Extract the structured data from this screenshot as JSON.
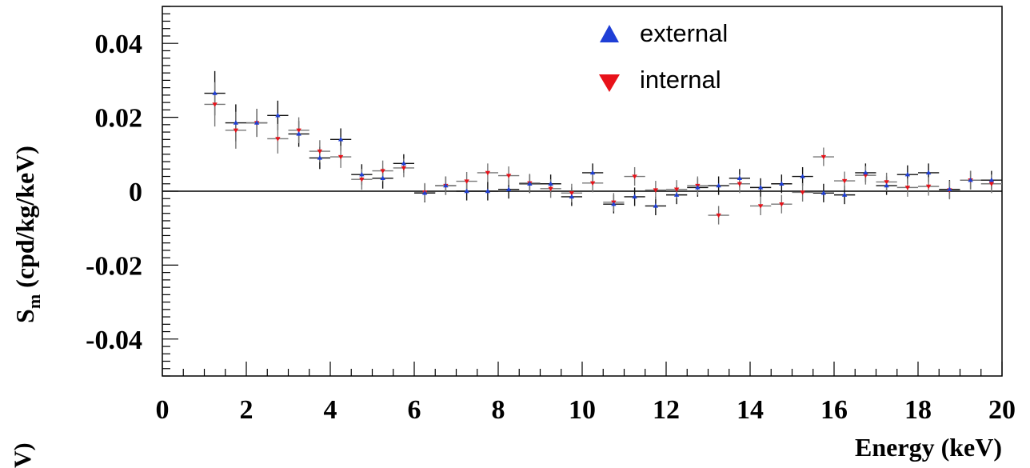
{
  "chart_data": {
    "type": "scatter",
    "title": "",
    "xlabel": "Energy (keV)",
    "ylabel_main": "S",
    "ylabel_sub": "m",
    "ylabel_units": "(cpd/kg/keV)",
    "clipped_label": "V)",
    "xlim": [
      0,
      20
    ],
    "ylim": [
      -0.05,
      0.05
    ],
    "xticks": [
      0,
      2,
      4,
      6,
      8,
      10,
      12,
      14,
      16,
      18,
      20
    ],
    "xtick_labels": [
      "0",
      "2",
      "4",
      "6",
      "8",
      "10",
      "12",
      "14",
      "16",
      "18",
      "20"
    ],
    "yticks": [
      -0.04,
      -0.02,
      0,
      0.02,
      0.04
    ],
    "ytick_labels": [
      "-0.04",
      "-0.02",
      "0",
      "0.02",
      "0.04"
    ],
    "zero_line": true,
    "x_bin_half_width": 0.25,
    "x": [
      1.25,
      1.75,
      2.25,
      2.75,
      3.25,
      3.75,
      4.25,
      4.75,
      5.25,
      5.75,
      6.25,
      6.75,
      7.25,
      7.75,
      8.25,
      8.75,
      9.25,
      9.75,
      10.25,
      10.75,
      11.25,
      11.75,
      12.25,
      12.75,
      13.25,
      13.75,
      14.25,
      14.75,
      15.25,
      15.75,
      16.25,
      16.75,
      17.25,
      17.75,
      18.25,
      18.75,
      19.25,
      19.75
    ],
    "series": [
      {
        "name": "external",
        "color": "#1f3fd6",
        "marker": "triangle-up",
        "values": [
          0.0265,
          0.0185,
          0.0185,
          0.0205,
          0.0155,
          0.009,
          0.014,
          0.0045,
          0.0035,
          0.0075,
          -0.0005,
          0.0015,
          0.0,
          0.0,
          0.0005,
          0.002,
          0.002,
          -0.0015,
          0.005,
          -0.0035,
          -0.0015,
          -0.004,
          -0.001,
          0.001,
          0.0015,
          0.0035,
          0.001,
          0.002,
          0.004,
          -0.0005,
          -0.001,
          0.005,
          0.0015,
          0.0045,
          0.005,
          0.0005,
          0.003,
          0.003
        ],
        "errors": [
          0.006,
          0.005,
          0.0038,
          0.004,
          0.0035,
          0.003,
          0.003,
          0.0028,
          0.0028,
          0.0025,
          0.0025,
          0.0025,
          0.0025,
          0.0025,
          0.0025,
          0.0025,
          0.0025,
          0.0025,
          0.0025,
          0.0025,
          0.0025,
          0.0025,
          0.0025,
          0.0025,
          0.0025,
          0.0025,
          0.0025,
          0.0025,
          0.0025,
          0.0025,
          0.0025,
          0.0025,
          0.0025,
          0.0025,
          0.0025,
          0.0025,
          0.0025,
          0.0025
        ]
      },
      {
        "name": "internal",
        "color": "#e8121a",
        "marker": "triangle-down",
        "values": [
          0.0235,
          0.0165,
          0.0185,
          0.0142,
          0.0165,
          0.0108,
          0.0093,
          0.0032,
          0.0055,
          0.0063,
          -0.0003,
          0.0015,
          0.0027,
          0.005,
          0.0042,
          0.0022,
          0.0007,
          -0.0005,
          0.0022,
          -0.003,
          0.004,
          0.0003,
          0.0005,
          0.0015,
          -0.0065,
          0.002,
          -0.004,
          -0.0035,
          -0.0003,
          0.0093,
          0.0028,
          0.0043,
          0.0025,
          0.001,
          0.0013,
          0.0003,
          0.003,
          0.002
        ]
      }
    ],
    "legend": {
      "placement": "top-right",
      "entries": [
        "external",
        "internal"
      ]
    },
    "colors": {
      "errorbar": "#000000",
      "zero_line": "#000000"
    }
  }
}
